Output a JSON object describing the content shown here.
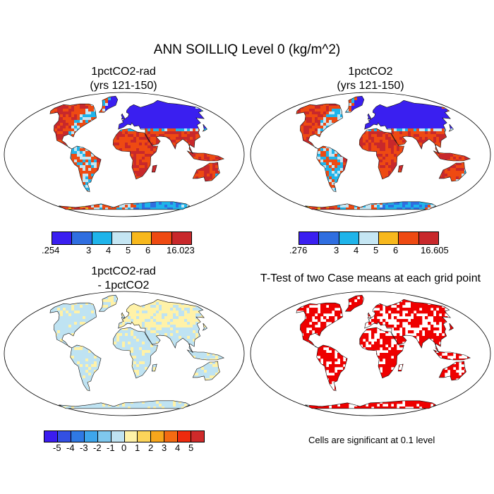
{
  "figure_title": "ANN SOILLIQ Level 0 (kg/m^2)",
  "panels": [
    {
      "id": "p1",
      "title_line1": "1pctCO2-rad",
      "title_line2": "(yrs 121-150)"
    },
    {
      "id": "p2",
      "title_line1": "1pctCO2",
      "title_line2": "(yrs 121-150)"
    },
    {
      "id": "p3",
      "title_line1": "1pctCO2-rad",
      "title_line2": "- 1pctCO2"
    },
    {
      "id": "p4",
      "title_line1": "T-Test of two Case means at each grid point",
      "title_line2": ""
    }
  ],
  "colorbars": {
    "abs1": {
      "colors": [
        "#3a1ff0",
        "#2f6ee0",
        "#1fb4ea",
        "#c5e6f3",
        "#f7b81d",
        "#ee4a12",
        "#c8282b"
      ],
      "labels": [
        ".254",
        "3",
        "4",
        "5",
        "6",
        "16.023"
      ]
    },
    "abs2": {
      "colors": [
        "#3a1ff0",
        "#2f6ee0",
        "#1fb4ea",
        "#c5e6f3",
        "#f7b81d",
        "#ee4a12",
        "#c8282b"
      ],
      "labels": [
        ".276",
        "3",
        "4",
        "5",
        "6",
        "16.605"
      ]
    },
    "diff": {
      "colors": [
        "#3b1cf0",
        "#3350e3",
        "#2f79e4",
        "#3ea6eb",
        "#7fc8ee",
        "#bfe3f2",
        "#fff2a8",
        "#fcd45a",
        "#f7a61c",
        "#f46b12",
        "#ee2a0e",
        "#cf2a2a"
      ],
      "labels": [
        "-5",
        "-4",
        "-3",
        "-2",
        "-1",
        "0",
        "1",
        "2",
        "3",
        "4",
        "5"
      ]
    }
  },
  "significance_note": "Cells are significant at 0.1 level",
  "colors": {
    "sig": "#ee0000",
    "diff_base": "#bfe3f2",
    "diff_pos": "#fff2a8"
  }
}
